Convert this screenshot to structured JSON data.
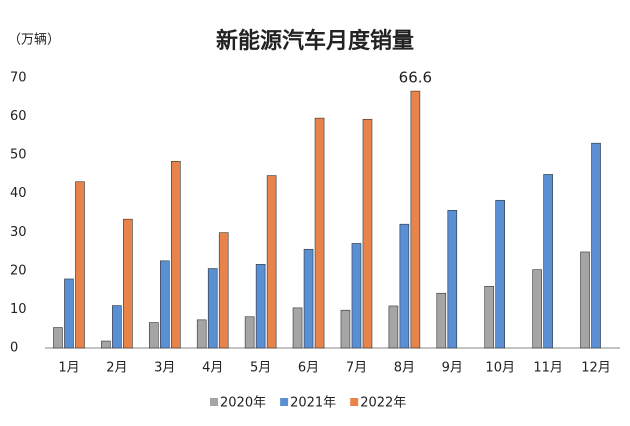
{
  "chart_data": {
    "type": "bar",
    "title": "新能源汽车月度销量",
    "unit_label": "（万辆）",
    "categories": [
      "1月",
      "2月",
      "3月",
      "4月",
      "5月",
      "6月",
      "7月",
      "8月",
      "9月",
      "10月",
      "11月",
      "12月"
    ],
    "series": [
      {
        "name": "2020年",
        "color": "#a5a5a5",
        "values": [
          5.3,
          1.8,
          6.6,
          7.3,
          8.1,
          10.4,
          9.8,
          10.9,
          14.2,
          16.0,
          20.3,
          24.9
        ]
      },
      {
        "name": "2021年",
        "color": "#5b8fd4",
        "values": [
          17.9,
          11.0,
          22.6,
          20.6,
          21.7,
          25.6,
          27.1,
          32.1,
          35.7,
          38.3,
          45.0,
          53.1
        ]
      },
      {
        "name": "2022年",
        "color": "#e8834a",
        "values": [
          43.1,
          33.4,
          48.4,
          29.9,
          44.7,
          59.6,
          59.3,
          66.6,
          null,
          null,
          null,
          null
        ],
        "value_labels": [
          null,
          null,
          null,
          null,
          null,
          null,
          null,
          "66.6",
          null,
          null,
          null,
          null
        ]
      }
    ],
    "ylim": [
      0,
      70
    ],
    "yticks": [
      0,
      10,
      20,
      30,
      40,
      50,
      60,
      70
    ],
    "grid": false,
    "legend": "bottom"
  }
}
